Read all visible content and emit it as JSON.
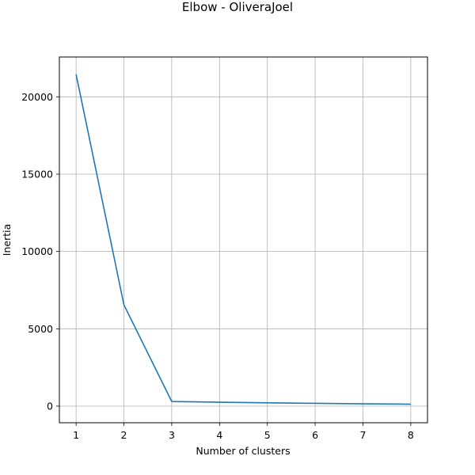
{
  "chart_data": {
    "type": "line",
    "title": "Elbow - OliveraJoel",
    "xlabel": "Number of clusters",
    "ylabel": "Inertia",
    "x": [
      1,
      2,
      3,
      4,
      5,
      6,
      7,
      8
    ],
    "series": [
      {
        "values": [
          21450,
          6550,
          300,
          255,
          215,
          180,
          150,
          125
        ],
        "color": "#1f77b4"
      }
    ],
    "xlim": [
      0.65,
      8.35
    ],
    "ylim": [
      -1075,
      22575
    ],
    "xticks": [
      1,
      2,
      3,
      4,
      5,
      6,
      7,
      8
    ],
    "yticks": [
      0,
      5000,
      10000,
      15000,
      20000
    ],
    "grid": true,
    "grid_color": "#b0b0b0"
  }
}
